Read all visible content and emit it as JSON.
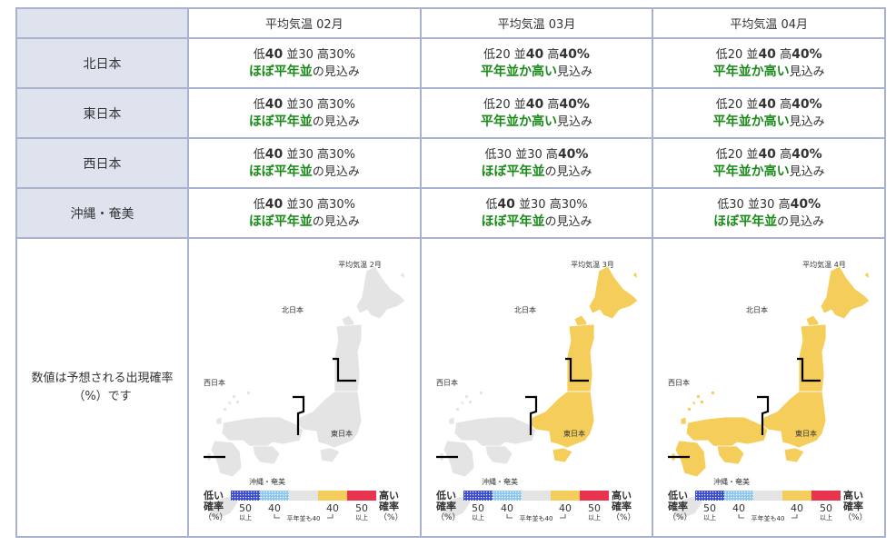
{
  "header": {
    "blank": "",
    "months": [
      "平均気温 02月",
      "平均気温 03月",
      "平均気温 04月"
    ]
  },
  "colors": {
    "near_normal": "#e4e4e4",
    "above_normal": "#f5cd5a",
    "low_dark": "#3a4bd1",
    "low_light": "#8fc7ee",
    "high_red": "#e8344e",
    "outline": "#ffffff",
    "green_text": "#1a8a1a",
    "header_bg": "#dfe3ee",
    "border": "#a9b3cf"
  },
  "rows": [
    {
      "region": "北日本",
      "cells": [
        {
          "low": "40",
          "mid": "30",
          "high": "30",
          "outlook": "ほぼ平年並",
          "suffix": "の見込み",
          "bold": "low"
        },
        {
          "low": "20",
          "mid": "40",
          "high": "40",
          "outlook": "平年並か高い",
          "suffix": "見込み",
          "bold": "midhigh"
        },
        {
          "low": "20",
          "mid": "40",
          "high": "40",
          "outlook": "平年並か高い",
          "suffix": "見込み",
          "bold": "midhigh"
        }
      ]
    },
    {
      "region": "東日本",
      "cells": [
        {
          "low": "40",
          "mid": "30",
          "high": "30",
          "outlook": "ほぼ平年並",
          "suffix": "の見込み",
          "bold": "low"
        },
        {
          "low": "20",
          "mid": "40",
          "high": "40",
          "outlook": "平年並か高い",
          "suffix": "見込み",
          "bold": "midhigh"
        },
        {
          "low": "20",
          "mid": "40",
          "high": "40",
          "outlook": "平年並か高い",
          "suffix": "見込み",
          "bold": "midhigh"
        }
      ]
    },
    {
      "region": "西日本",
      "cells": [
        {
          "low": "40",
          "mid": "30",
          "high": "30",
          "outlook": "ほぼ平年並",
          "suffix": "の見込み",
          "bold": "low"
        },
        {
          "low": "30",
          "mid": "30",
          "high": "40",
          "outlook": "ほぼ平年並",
          "suffix": "の見込み",
          "bold": "high"
        },
        {
          "low": "20",
          "mid": "40",
          "high": "40",
          "outlook": "平年並か高い",
          "suffix": "見込み",
          "bold": "midhigh"
        }
      ]
    },
    {
      "region": "沖縄・奄美",
      "cells": [
        {
          "low": "40",
          "mid": "30",
          "high": "30",
          "outlook": "ほぼ平年並",
          "suffix": "の見込み",
          "bold": "low"
        },
        {
          "low": "40",
          "mid": "30",
          "high": "30",
          "outlook": "ほぼ平年並",
          "suffix": "の見込み",
          "bold": "low"
        },
        {
          "low": "30",
          "mid": "30",
          "high": "40",
          "outlook": "ほぼ平年並",
          "suffix": "の見込み",
          "bold": "high"
        }
      ]
    }
  ],
  "labels": {
    "low": "低",
    "mid": "並",
    "high": "高",
    "pct": "%"
  },
  "note_line1": "数値は予想される出現確率",
  "note_line2": "（%）です",
  "maps": [
    {
      "title": "平均気温  2月",
      "fills": {
        "north": "near_normal",
        "east": "near_normal",
        "west": "near_normal",
        "okinawa": "near_normal"
      }
    },
    {
      "title": "平均気温  3月",
      "fills": {
        "north": "above_normal",
        "east": "above_normal",
        "west": "near_normal",
        "okinawa": "near_normal"
      }
    },
    {
      "title": "平均気温  4月",
      "fills": {
        "north": "above_normal",
        "east": "above_normal",
        "west": "above_normal",
        "okinawa": "near_normal"
      }
    }
  ],
  "map_labels": {
    "north": "北日本",
    "east": "東日本",
    "west": "西日本",
    "okinawa": "沖縄・奄美"
  },
  "legend": {
    "low_l1": "低い",
    "low_l2": "確率",
    "low_l3": "（%）",
    "high_l1": "高い",
    "high_l2": "確率",
    "high_l3": "（%）",
    "n50a": "50",
    "ijo_a": "以上",
    "n40a": "40",
    "n40b": "40",
    "n50b": "50",
    "ijo_b": "以上",
    "normal": "平年並も40"
  }
}
